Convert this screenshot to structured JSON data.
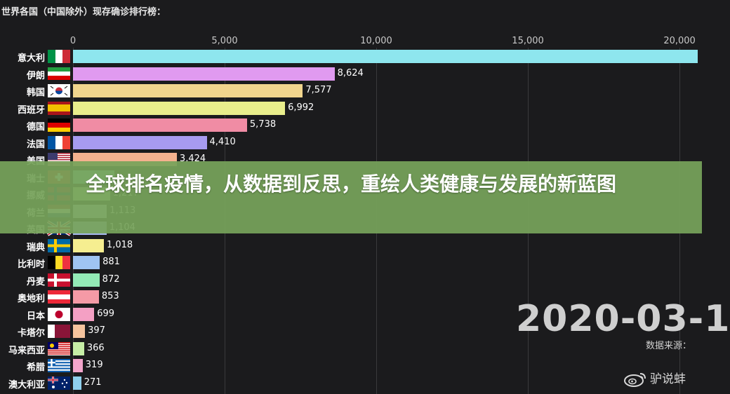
{
  "header": {
    "title": "世界各国（中国除外）现存确诊排行榜："
  },
  "chart_data": {
    "type": "bar",
    "orientation": "horizontal",
    "title": "世界各国（中国除外）现存确诊排行榜：",
    "xlim": [
      0,
      20600
    ],
    "x_ticks": [
      "0",
      "5,000",
      "10,000",
      "15,000",
      "20,000"
    ],
    "x_tick_values": [
      0,
      5000,
      10000,
      15000,
      20000
    ],
    "grid": true,
    "categories": [
      "意大利",
      "伊朗",
      "韩国",
      "西班牙",
      "德国",
      "法国",
      "美国",
      "瑞士",
      "挪威",
      "荷兰",
      "英国",
      "瑞典",
      "比利时",
      "丹麦",
      "奥地利",
      "日本",
      "卡塔尔",
      "马来西亚",
      "希腊",
      "澳大利亚"
    ],
    "values": [
      20603,
      8624,
      7577,
      6992,
      5738,
      4410,
      3424,
      1359,
      1217,
      1113,
      1104,
      1018,
      881,
      872,
      853,
      699,
      397,
      366,
      319,
      271
    ],
    "value_labels": [
      "",
      "8,624",
      "7,577",
      "6,992",
      "5,738",
      "4,410",
      "3,424",
      "",
      "1,217",
      "1,113",
      "1,104",
      "1,018",
      "881",
      "872",
      "853",
      "699",
      "397",
      "366",
      "319",
      "271"
    ],
    "bar_colors": [
      "#8ee6ee",
      "#e09af0",
      "#f1d58d",
      "#e9ee8c",
      "#f08ca4",
      "#a79bf0",
      "#f4b18e",
      "#93e3d3",
      "#bff0a8",
      "#cfe5e8",
      "#a7b8f0",
      "#f6ee90",
      "#9fc4f2",
      "#93ebb6",
      "#f59aa6",
      "#f4a0c4",
      "#f6c49e",
      "#c6eea6",
      "#f4a6cc",
      "#8fd0ec"
    ]
  },
  "date": "2020-03-1",
  "source": "数据来源：",
  "watermark": {
    "icon": "weibo-icon",
    "text": "驴说蚌"
  },
  "banner": {
    "text": "全球排名疫情，从数据到反思，重绘人类健康与发展的新蓝图"
  }
}
